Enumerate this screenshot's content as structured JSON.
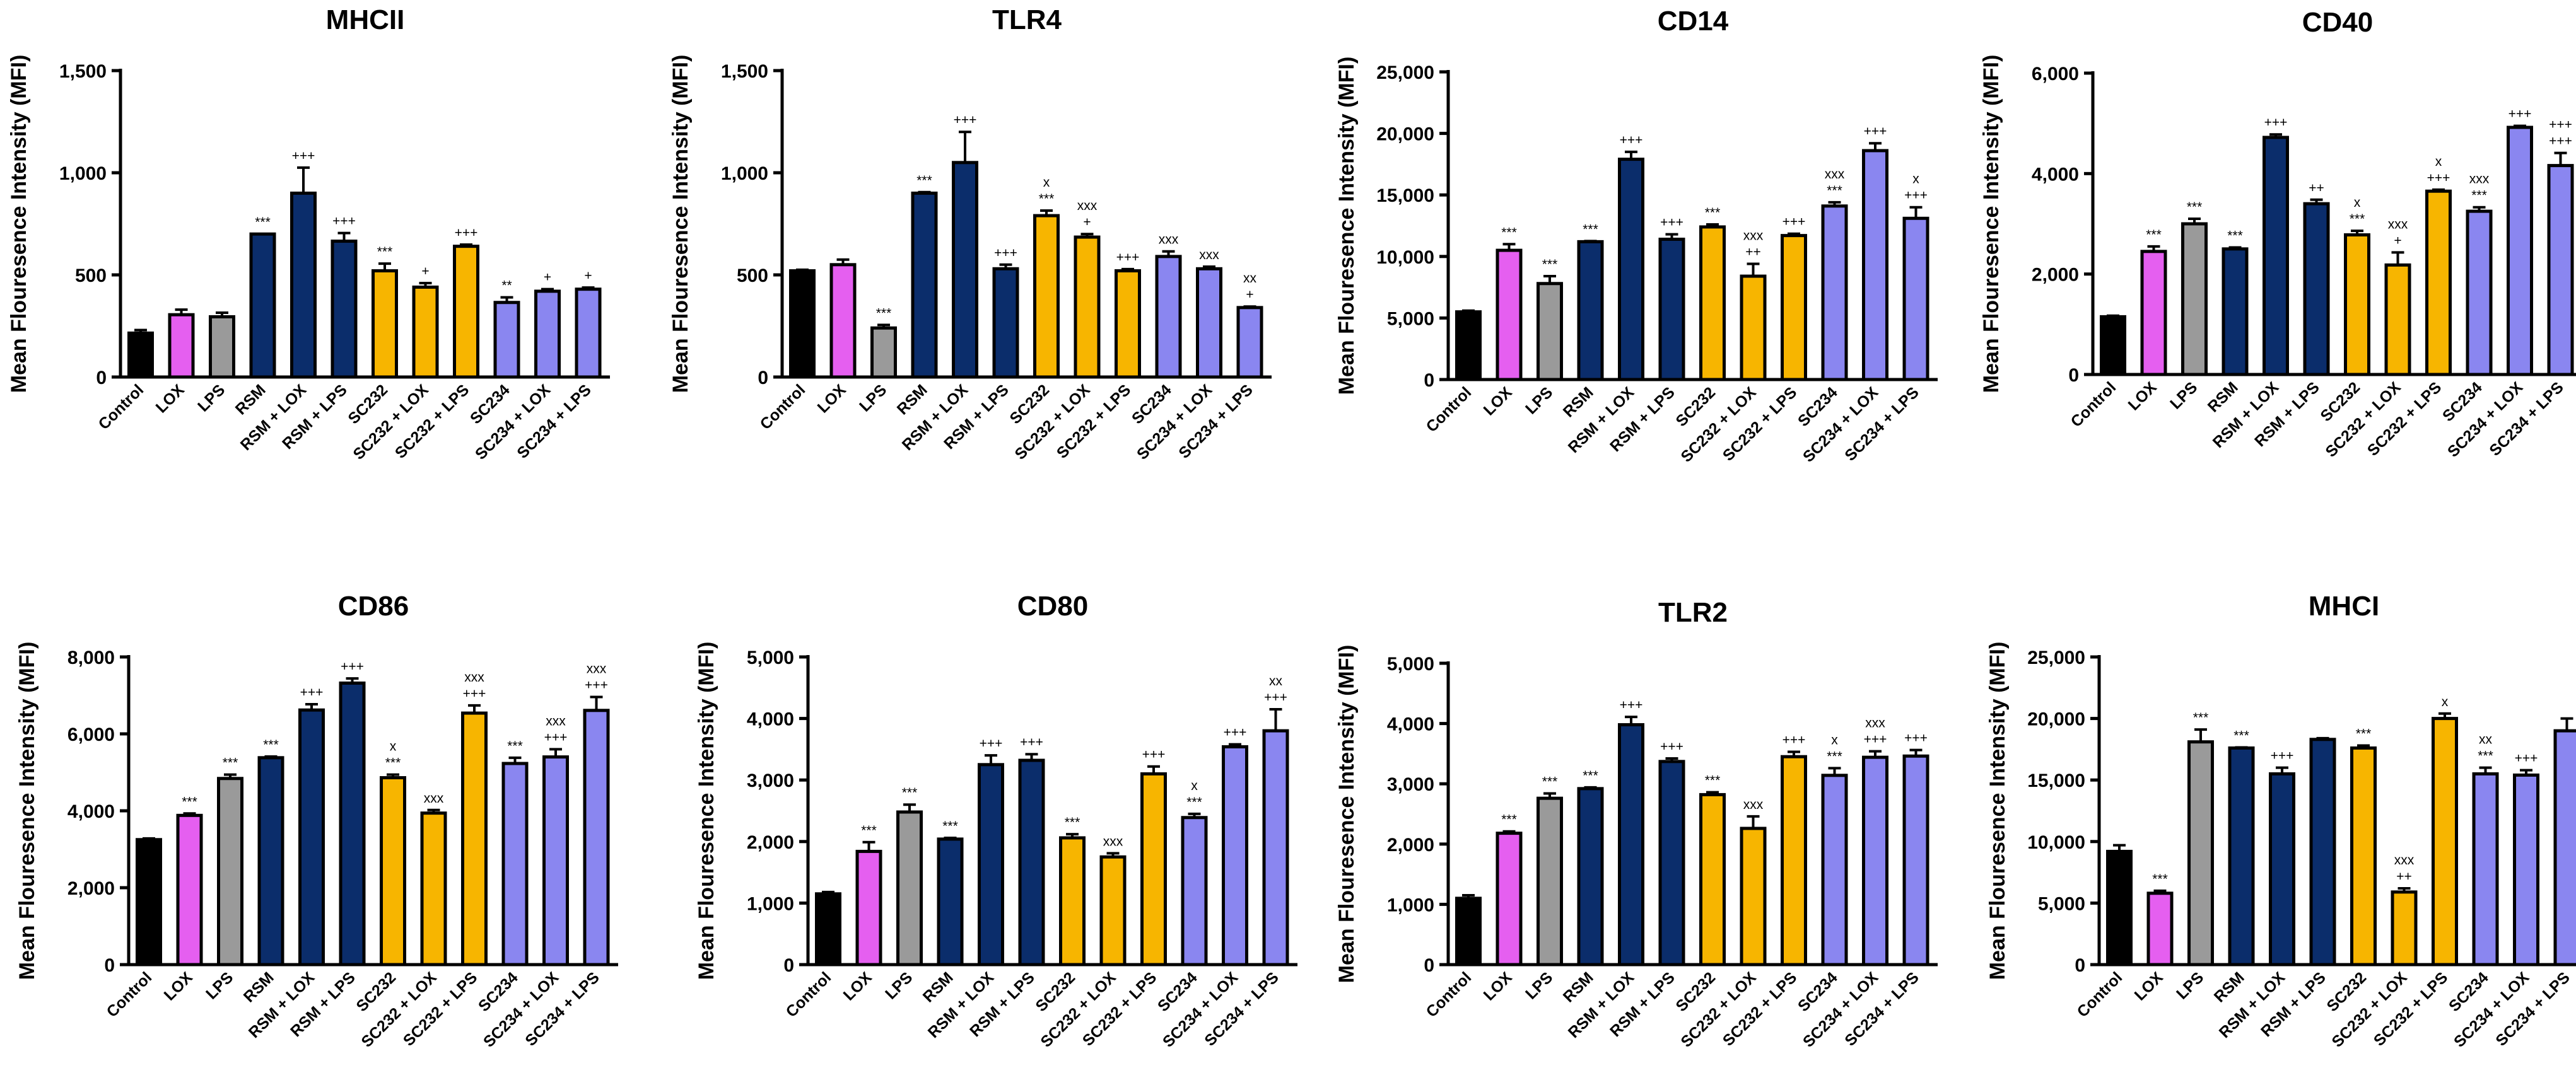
{
  "figure_ylabel": "Mean Flouresence Intensity (MFI)",
  "categories": [
    "Control",
    "LOX",
    "LPS",
    "RSM",
    "RSM + LOX",
    "RSM + LPS",
    "SC232",
    "SC232 + LOX",
    "SC232 + LPS",
    "SC234",
    "SC234 + LOX",
    "SC234 + LPS"
  ],
  "bar_colors": [
    "#000000",
    "#e55ff0",
    "#9a9a9a",
    "#0b2d6b",
    "#0b2d6b",
    "#0b2d6b",
    "#f7b500",
    "#f7b500",
    "#f7b500",
    "#8a86f0",
    "#8a86f0",
    "#8a86f0"
  ],
  "chart_data": [
    {
      "type": "bar",
      "title": "MHCII",
      "ylabel": "Mean Flouresence Intensity (MFI)",
      "ylim": [
        0,
        1500
      ],
      "ticks": [
        0,
        500,
        1000,
        1500
      ],
      "tick_labels": [
        "0",
        "500",
        "1,000",
        "1,500"
      ],
      "values": [
        215,
        305,
        295,
        700,
        900,
        665,
        520,
        440,
        640,
        365,
        420,
        430
      ],
      "errors": [
        15,
        25,
        20,
        0,
        125,
        40,
        35,
        20,
        8,
        25,
        10,
        8
      ],
      "annotations": [
        [],
        [],
        [],
        [
          "***"
        ],
        [
          "+++"
        ],
        [
          "+++"
        ],
        [
          "***"
        ],
        [
          "+"
        ],
        [
          "+++"
        ],
        [
          "**"
        ],
        [
          "+"
        ],
        [
          "+"
        ]
      ]
    },
    {
      "type": "bar",
      "title": "TLR4",
      "ylabel": "Mean Flouresence Intensity (MFI)",
      "ylim": [
        0,
        1500
      ],
      "ticks": [
        0,
        500,
        1000,
        1500
      ],
      "tick_labels": [
        "0",
        "500",
        "1,000",
        "1,500"
      ],
      "values": [
        520,
        550,
        240,
        900,
        1050,
        530,
        790,
        685,
        520,
        590,
        530,
        340
      ],
      "errors": [
        5,
        25,
        15,
        5,
        150,
        20,
        25,
        15,
        8,
        25,
        10,
        5
      ],
      "annotations": [
        [],
        [],
        [
          "***"
        ],
        [
          "***"
        ],
        [
          "+++"
        ],
        [
          "+++"
        ],
        [
          "x",
          "***"
        ],
        [
          "xxx",
          "+"
        ],
        [
          "+++"
        ],
        [
          "xxx"
        ],
        [
          "xxx"
        ],
        [
          "xx",
          "+"
        ]
      ]
    },
    {
      "type": "bar",
      "title": "CD14",
      "ylabel": "Mean Flouresence Intensity (MFI)",
      "ylim": [
        0,
        25000
      ],
      "ticks": [
        0,
        5000,
        10000,
        15000,
        20000,
        25000
      ],
      "tick_labels": [
        "0",
        "5,000",
        "10,000",
        "15,000",
        "20,000",
        "25,000"
      ],
      "values": [
        5500,
        10500,
        7800,
        11200,
        17900,
        11400,
        12400,
        8400,
        11700,
        14100,
        18600,
        13100
      ],
      "errors": [
        100,
        500,
        600,
        50,
        600,
        400,
        200,
        1000,
        150,
        300,
        600,
        900
      ],
      "annotations": [
        [],
        [
          "***"
        ],
        [
          "***"
        ],
        [
          "***"
        ],
        [
          "+++"
        ],
        [
          "+++"
        ],
        [
          "***"
        ],
        [
          "xxx",
          "++"
        ],
        [
          "+++"
        ],
        [
          "xxx",
          "***"
        ],
        [
          "+++"
        ],
        [
          "x",
          "+++"
        ]
      ]
    },
    {
      "type": "bar",
      "title": "CD40",
      "ylabel": "Mean Flouresence Intensity (MFI)",
      "ylim": [
        0,
        6000
      ],
      "ticks": [
        0,
        2000,
        4000,
        6000
      ],
      "tick_labels": [
        "0",
        "2,000",
        "4,000",
        "6,000"
      ],
      "values": [
        1150,
        2450,
        3000,
        2500,
        4720,
        3400,
        2780,
        2180,
        3650,
        3250,
        4920,
        4160
      ],
      "errors": [
        20,
        100,
        100,
        30,
        60,
        80,
        80,
        250,
        30,
        80,
        30,
        250
      ],
      "annotations": [
        [],
        [
          "***"
        ],
        [
          "***"
        ],
        [
          "***"
        ],
        [
          "+++"
        ],
        [
          "++"
        ],
        [
          "x",
          "***"
        ],
        [
          "xxx",
          "+"
        ],
        [
          "x",
          "+++"
        ],
        [
          "xxx",
          "***"
        ],
        [
          "+++"
        ],
        [
          "+++",
          "+++"
        ]
      ]
    },
    {
      "type": "bar",
      "title": "CD86",
      "ylabel": "Mean Flouresence Intensity (MFI)",
      "ylim": [
        0,
        8000
      ],
      "ticks": [
        0,
        2000,
        4000,
        6000,
        8000
      ],
      "tick_labels": [
        "0",
        "2,000",
        "4,000",
        "6,000",
        "8,000"
      ],
      "values": [
        3250,
        3880,
        4840,
        5380,
        6620,
        7320,
        4860,
        3940,
        6540,
        5230,
        5400,
        6610
      ],
      "errors": [
        30,
        50,
        100,
        30,
        150,
        120,
        80,
        80,
        200,
        150,
        200,
        350
      ],
      "annotations": [
        [],
        [
          "***"
        ],
        [
          "***"
        ],
        [
          "***"
        ],
        [
          "+++"
        ],
        [
          "+++"
        ],
        [
          "x",
          "***"
        ],
        [
          "xxx"
        ],
        [
          "xxx",
          "+++"
        ],
        [
          "***"
        ],
        [
          "xxx",
          "+++"
        ],
        [
          "xxx",
          "+++"
        ]
      ]
    },
    {
      "type": "bar",
      "title": "CD80",
      "ylabel": "Mean Flouresence Intensity (MFI)",
      "ylim": [
        0,
        5000
      ],
      "ticks": [
        0,
        1000,
        2000,
        3000,
        4000,
        5000
      ],
      "tick_labels": [
        "0",
        "1,000",
        "2,000",
        "3,000",
        "4,000",
        "5,000"
      ],
      "values": [
        1150,
        1840,
        2480,
        2040,
        3250,
        3320,
        2060,
        1750,
        3100,
        2390,
        3540,
        3800
      ],
      "errors": [
        30,
        150,
        120,
        20,
        150,
        100,
        60,
        60,
        120,
        60,
        40,
        350
      ],
      "annotations": [
        [],
        [
          "***"
        ],
        [
          "***"
        ],
        [
          "***"
        ],
        [
          "+++"
        ],
        [
          "+++"
        ],
        [
          "***"
        ],
        [
          "xxx"
        ],
        [
          "+++"
        ],
        [
          "x",
          "***"
        ],
        [
          "+++"
        ],
        [
          "xx",
          "+++"
        ]
      ]
    },
    {
      "type": "bar",
      "title": "TLR2",
      "ylabel": "Mean Flouresence Intensity (MFI)",
      "ylim": [
        0,
        5000
      ],
      "ticks": [
        0,
        1000,
        2000,
        3000,
        4000,
        5000
      ],
      "tick_labels": [
        "0",
        "1,000",
        "2,000",
        "3,000",
        "4,000",
        "5,000"
      ],
      "values": [
        1100,
        2180,
        2760,
        2920,
        3980,
        3370,
        2820,
        2260,
        3450,
        3140,
        3440,
        3460
      ],
      "errors": [
        50,
        30,
        80,
        20,
        130,
        50,
        40,
        200,
        80,
        120,
        100,
        100
      ],
      "annotations": [
        [],
        [
          "***"
        ],
        [
          "***"
        ],
        [
          "***"
        ],
        [
          "+++"
        ],
        [
          "+++"
        ],
        [
          "***"
        ],
        [
          "xxx"
        ],
        [
          "+++"
        ],
        [
          "x",
          "***"
        ],
        [
          "xxx",
          "+++"
        ],
        [
          "+++"
        ]
      ]
    },
    {
      "type": "bar",
      "title": "MHCI",
      "ylabel": "Mean Flouresence Intensity (MFI)",
      "ylim": [
        0,
        25000
      ],
      "ticks": [
        0,
        5000,
        10000,
        15000,
        20000,
        25000
      ],
      "tick_labels": [
        "0",
        "5,000",
        "10,000",
        "15,000",
        "20,000",
        "25,000"
      ],
      "values": [
        9200,
        5800,
        18100,
        17600,
        15500,
        18300,
        17600,
        5900,
        20000,
        15500,
        15400,
        19000
      ],
      "errors": [
        500,
        200,
        1000,
        50,
        500,
        100,
        200,
        300,
        400,
        500,
        400,
        1000
      ],
      "annotations": [
        [],
        [
          "***"
        ],
        [
          "***"
        ],
        [
          "***"
        ],
        [
          "+++"
        ],
        [],
        [
          "***"
        ],
        [
          "xxx",
          "++"
        ],
        [
          "x"
        ],
        [
          "xx",
          "***"
        ],
        [
          "+++"
        ],
        []
      ]
    }
  ]
}
